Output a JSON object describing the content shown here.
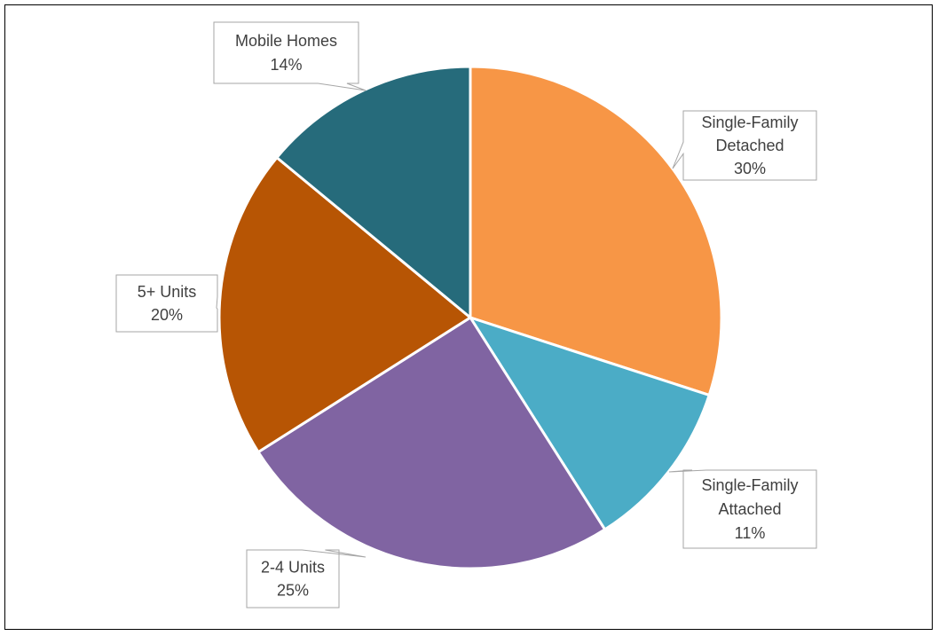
{
  "chart_data": {
    "type": "pie",
    "title": "",
    "start_angle_deg": 0,
    "direction": "clockwise",
    "slices": [
      {
        "name": "Single-Family Detached",
        "label_lines": [
          "Single-Family",
          "Detached"
        ],
        "value": 30,
        "display": "30%",
        "color": "#F79646"
      },
      {
        "name": "Single-Family Attached",
        "label_lines": [
          "Single-Family",
          "Attached"
        ],
        "value": 11,
        "display": "11%",
        "color": "#4BACC6"
      },
      {
        "name": "2-4 Units",
        "label_lines": [
          "2-4 Units"
        ],
        "value": 25,
        "display": "25%",
        "color": "#8064A2"
      },
      {
        "name": "5+ Units",
        "label_lines": [
          "5+ Units"
        ],
        "value": 20,
        "display": "20%",
        "color": "#B75504"
      },
      {
        "name": "Mobile Homes",
        "label_lines": [
          "Mobile Homes"
        ],
        "value": 14,
        "display": "14%",
        "color": "#266B7B"
      }
    ]
  }
}
